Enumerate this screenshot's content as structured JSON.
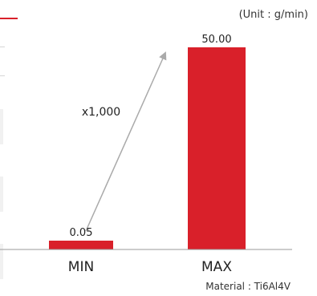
{
  "chart_data": {
    "type": "bar",
    "unit_note": "(Unit : g/min)",
    "categories": [
      "MIN",
      "MAX"
    ],
    "values": [
      0.05,
      50.0
    ],
    "value_labels": [
      "0.05",
      "50.00"
    ],
    "annotation": "x1,000",
    "footnote": "Material : Ti6Al4V",
    "bar_color": "#d9202a",
    "arrow_color": "#aaaaaa",
    "ylim": [
      0,
      50
    ]
  }
}
